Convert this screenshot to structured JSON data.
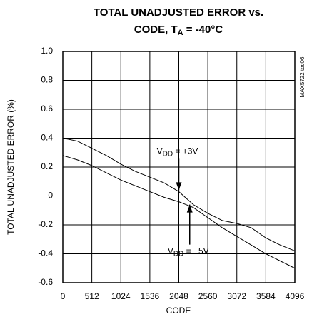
{
  "chart_data": {
    "type": "line",
    "title": [
      {
        "text": "TOTAL UNADJUSTED ERROR vs."
      },
      {
        "text": "CODE, T",
        "sub": "A",
        "after": " = -40°C"
      }
    ],
    "xlabel": "CODE",
    "ylabel": "TOTAL UNADJUSTED ERROR (%)",
    "side_note": "MAX5722 toc06",
    "x": [
      0,
      256,
      512,
      768,
      1024,
      1280,
      1536,
      1792,
      2048,
      2304,
      2560,
      2816,
      3072,
      3328,
      3584,
      3840,
      4096
    ],
    "series": [
      {
        "color": "#000000",
        "values": [
          0.4,
          0.38,
          0.33,
          0.28,
          0.22,
          0.17,
          0.13,
          0.09,
          0.03,
          -0.06,
          -0.12,
          -0.17,
          -0.19,
          -0.22,
          -0.29,
          -0.34,
          -0.38
        ]
      },
      {
        "color": "#000000",
        "values": [
          0.28,
          0.25,
          0.21,
          0.16,
          0.11,
          0.07,
          0.03,
          -0.01,
          -0.04,
          -0.08,
          -0.15,
          -0.22,
          -0.28,
          -0.34,
          -0.4,
          -0.45,
          -0.5
        ]
      }
    ],
    "annotations": [
      {
        "text": "V",
        "sub": "DD",
        "after": " = +3V",
        "x": 2048,
        "y": 0.03
      },
      {
        "text": "V",
        "sub": "DD",
        "after": " = +5V",
        "x": 2240,
        "y": -0.05
      }
    ],
    "xlim": [
      0,
      4096
    ],
    "xticks": [
      0,
      512,
      1024,
      1536,
      2048,
      2560,
      3072,
      3584,
      4096
    ],
    "ylim": [
      -0.6,
      1.0
    ],
    "yticks": [
      {
        "value": 1,
        "label": "1.0"
      },
      0.8,
      0.6,
      0.4,
      0.2,
      0,
      -0.2,
      -0.4,
      -0.6
    ],
    "grid": true
  }
}
